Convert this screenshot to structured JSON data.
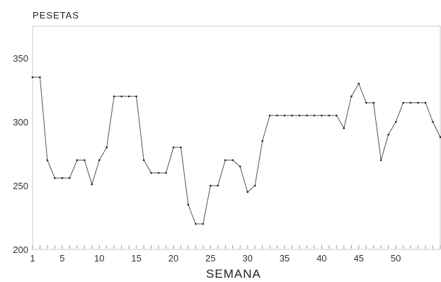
{
  "chart_data": {
    "type": "line",
    "ylabel": "PESETAS",
    "xlabel": "SEMANA",
    "ylim": [
      200,
      375
    ],
    "xlim": [
      1,
      56
    ],
    "yticks": [
      200,
      250,
      300,
      350
    ],
    "xticks": [
      1,
      5,
      10,
      15,
      20,
      25,
      30,
      35,
      40,
      45,
      50
    ],
    "grid": false,
    "color": "#555555",
    "x": [
      1,
      2,
      3,
      4,
      5,
      6,
      7,
      8,
      9,
      10,
      11,
      12,
      13,
      14,
      15,
      16,
      17,
      18,
      19,
      20,
      21,
      22,
      23,
      24,
      25,
      26,
      27,
      28,
      29,
      30,
      31,
      32,
      33,
      34,
      35,
      36,
      37,
      38,
      39,
      40,
      41,
      42,
      43,
      44,
      45,
      46,
      47,
      48,
      49,
      50,
      51,
      52,
      53,
      54,
      55,
      56
    ],
    "values": [
      335,
      335,
      270,
      256,
      256,
      256,
      270,
      270,
      251,
      270,
      280,
      320,
      320,
      320,
      320,
      270,
      260,
      260,
      260,
      280,
      280,
      235,
      220,
      220,
      250,
      250,
      270,
      270,
      265,
      245,
      250,
      285,
      305,
      305,
      305,
      305,
      305,
      305,
      305,
      305,
      305,
      305,
      295,
      320,
      330,
      315,
      315,
      270,
      290,
      300,
      315,
      315,
      315,
      315,
      300,
      288
    ]
  }
}
